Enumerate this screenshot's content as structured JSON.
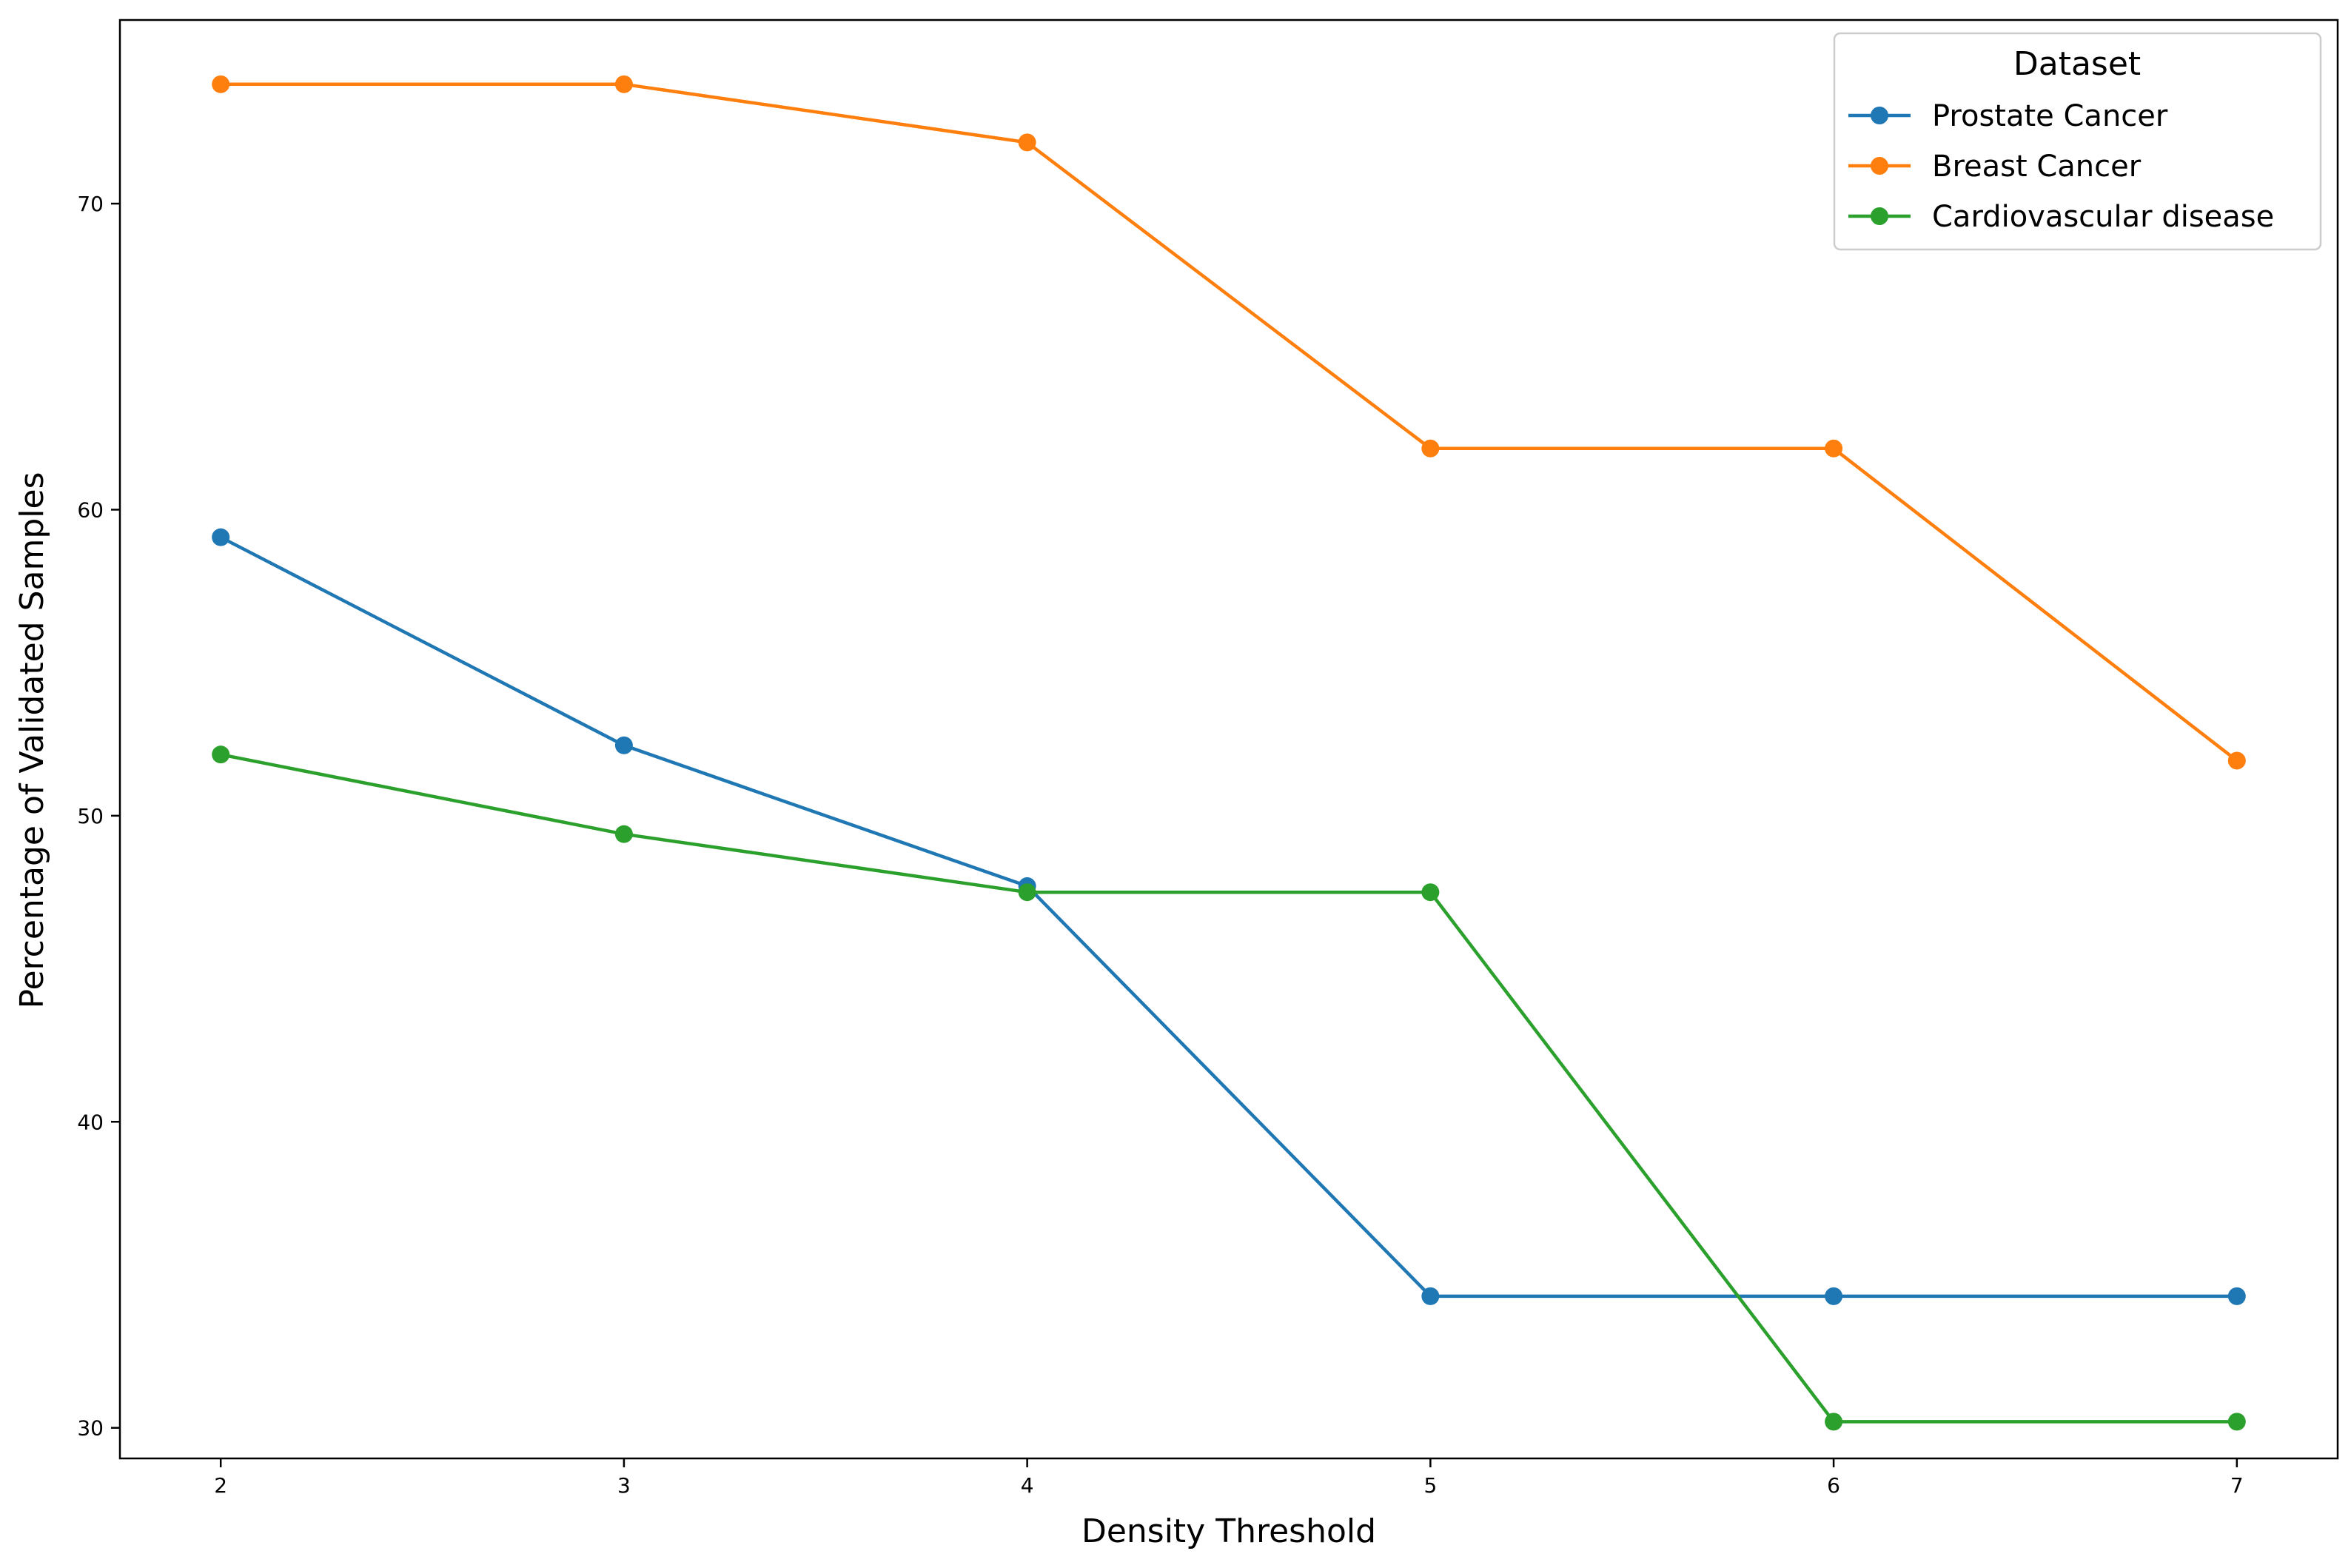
{
  "chart_data": {
    "type": "line",
    "xlabel": "Density Threshold",
    "ylabel": "Percentage of Validated Samples",
    "x": [
      2,
      3,
      4,
      5,
      6,
      7
    ],
    "xticks": [
      2,
      3,
      4,
      5,
      6,
      7
    ],
    "yticks": [
      30,
      40,
      50,
      60,
      70
    ],
    "xlim": [
      1.75,
      7.25
    ],
    "ylim": [
      29.0,
      76.0
    ],
    "grid": false,
    "legend": {
      "title": "Dataset",
      "placement": "upper-right"
    },
    "series": [
      {
        "name": "Prostate Cancer",
        "color": "#1f77b4",
        "values": [
          59.1,
          52.3,
          47.7,
          34.3,
          34.3,
          34.3
        ]
      },
      {
        "name": "Breast Cancer",
        "color": "#ff7f0e",
        "values": [
          73.9,
          73.9,
          72.0,
          62.0,
          62.0,
          51.8
        ]
      },
      {
        "name": "Cardiovascular disease",
        "color": "#2ca02c",
        "values": [
          52.0,
          49.4,
          47.5,
          47.5,
          30.2,
          30.2
        ]
      }
    ]
  }
}
